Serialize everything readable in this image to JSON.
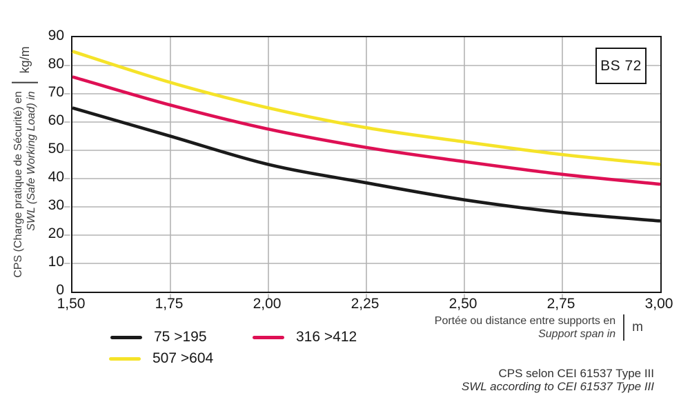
{
  "badge": "BS 72",
  "colors": {
    "black": "#1a1a1a",
    "pink": "#de1054",
    "yellow": "#f5e329",
    "grid": "#b3b3b3",
    "axis": "#161616"
  },
  "y_axis": {
    "label_fr": "CPS (Charge pratique de Sécurité) en",
    "label_en": "SWL (Safe Working Load) in",
    "unit": "kg/m"
  },
  "x_axis": {
    "label_fr": "Portée ou distance entre supports en",
    "label_en": "Support span in",
    "unit": "m"
  },
  "legend": [
    {
      "label": "75 >195",
      "color": "#1a1a1a"
    },
    {
      "label": "316 >412",
      "color": "#de1054"
    },
    {
      "label": "507 >604",
      "color": "#f5e329"
    }
  ],
  "footnote": {
    "fr": "CPS selon CEI 61537 Type III",
    "en": "SWL according to CEI 61537 Type III"
  },
  "chart_data": {
    "type": "line",
    "title": "",
    "xlabel": "Portée ou distance entre supports en / Support span in (m)",
    "ylabel": "CPS (Charge pratique de Sécurité) en / SWL (Safe Working Load) in (kg/m)",
    "x": [
      1.5,
      1.75,
      2.0,
      2.25,
      2.5,
      2.75,
      3.0
    ],
    "x_tick_labels": [
      "1,50",
      "1,75",
      "2,00",
      "2,25",
      "2,50",
      "2,75",
      "3,00"
    ],
    "y_ticks": [
      0,
      10,
      20,
      30,
      40,
      50,
      60,
      70,
      80,
      90
    ],
    "xlim": [
      1.5,
      3.0
    ],
    "ylim": [
      0,
      90
    ],
    "grid": true,
    "legend_position": "bottom-left",
    "series": [
      {
        "name": "75 >195",
        "color": "#1a1a1a",
        "values": [
          65,
          55,
          45,
          38.5,
          32.5,
          28,
          25
        ]
      },
      {
        "name": "316 >412",
        "color": "#de1054",
        "values": [
          76,
          66,
          57.5,
          51,
          46,
          41.5,
          38
        ]
      },
      {
        "name": "507 >604",
        "color": "#f5e329",
        "values": [
          85,
          74,
          65,
          58,
          53,
          48.5,
          45
        ]
      }
    ]
  }
}
